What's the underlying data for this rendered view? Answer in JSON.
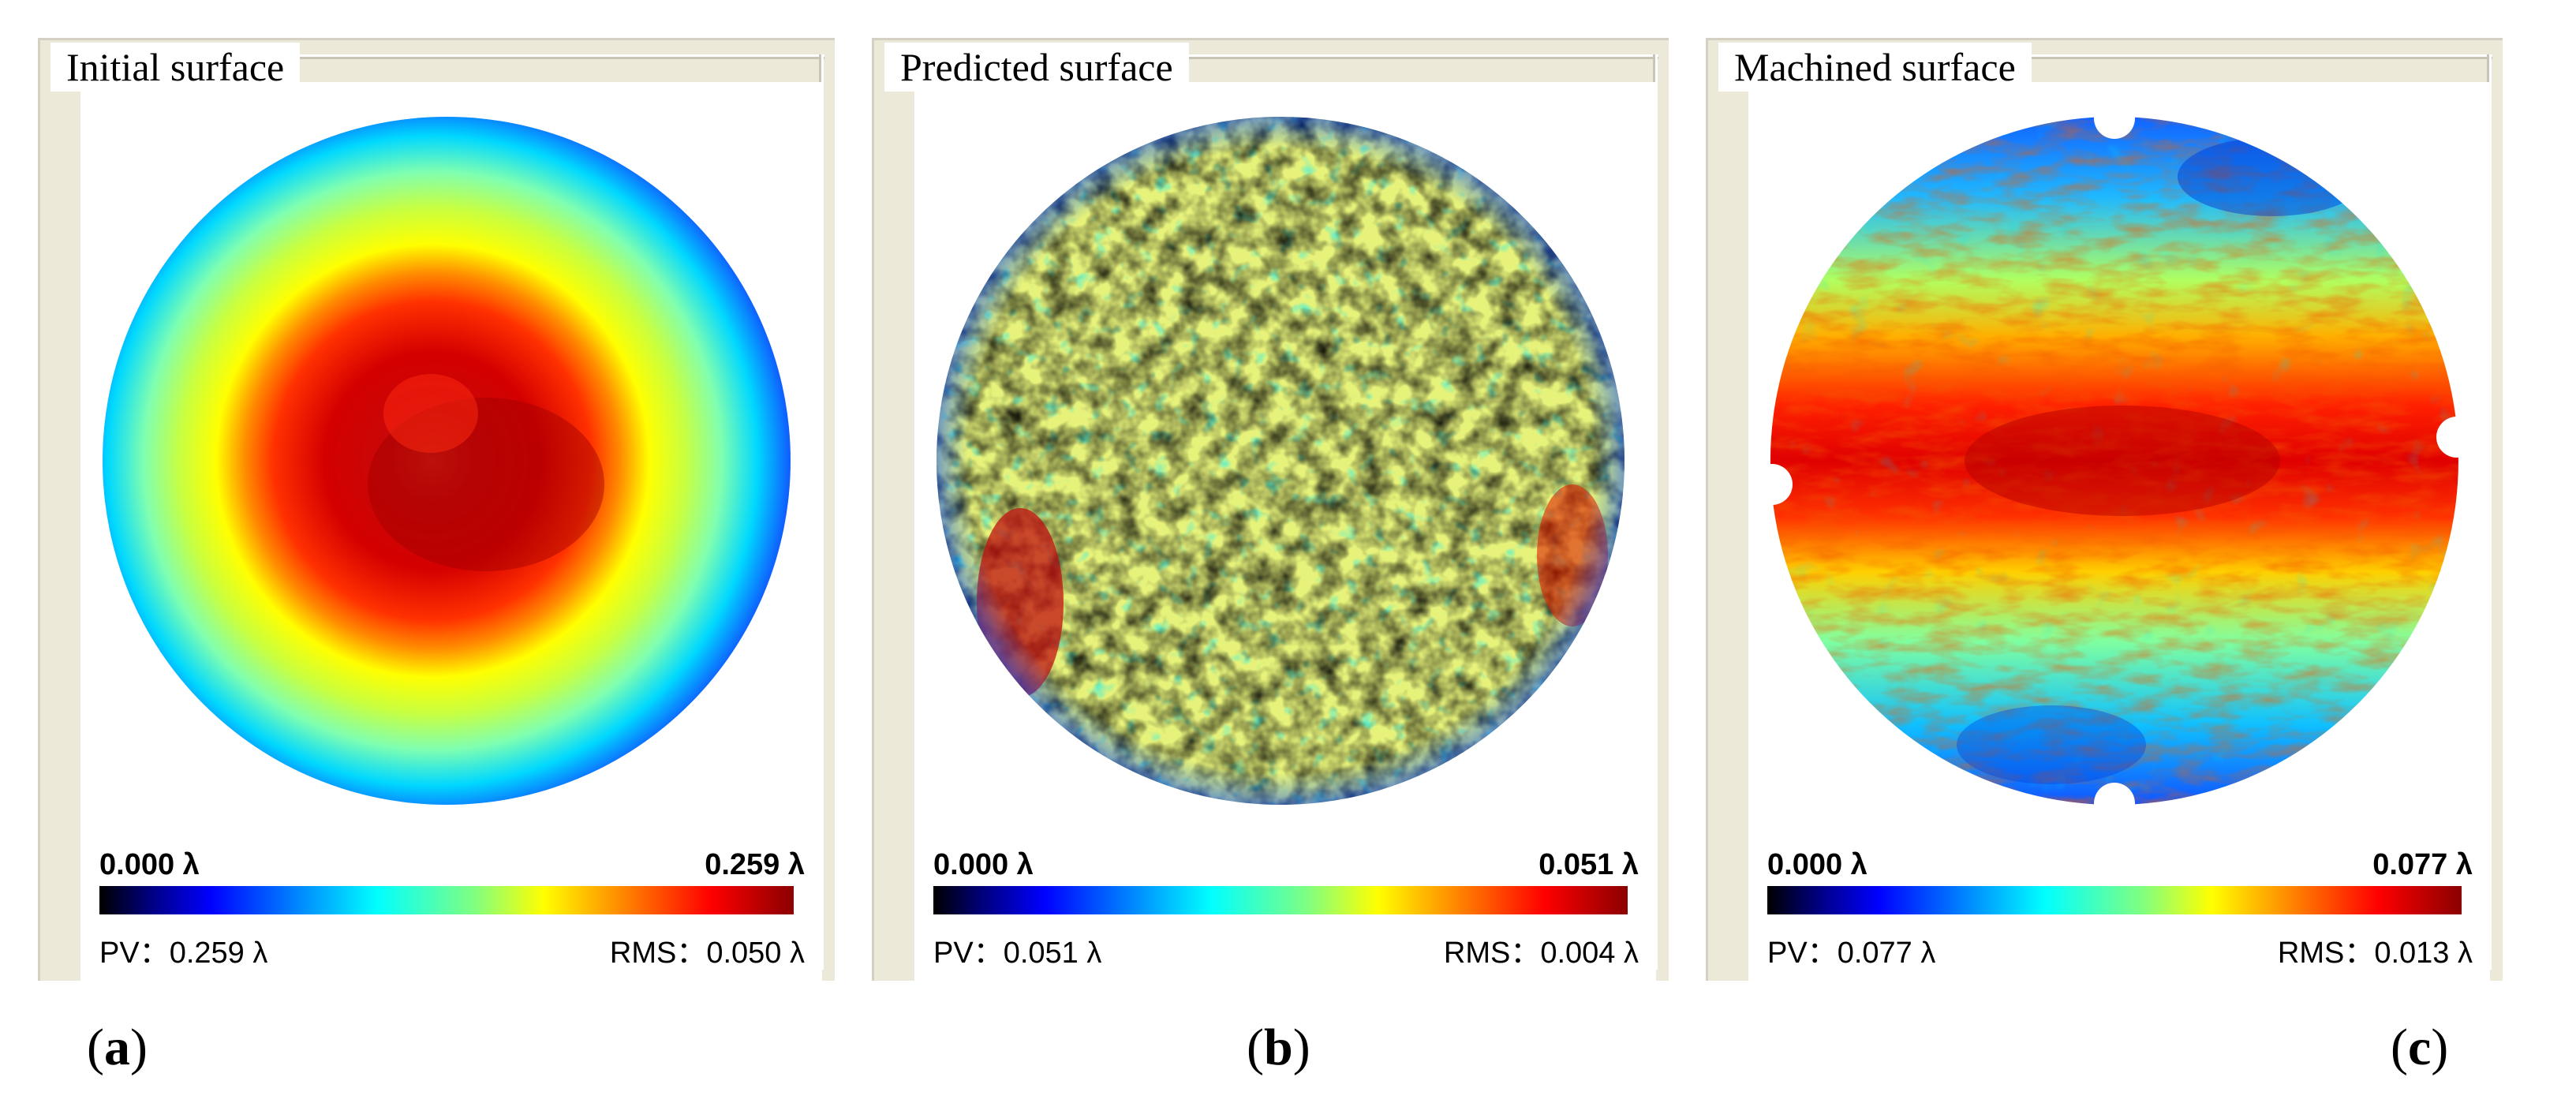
{
  "panels": [
    {
      "id": "a",
      "title": "Initial surface",
      "scale_min": "0.000 λ",
      "scale_max": "0.259 λ",
      "pv_label": "PV：",
      "pv_value": "0.259 λ",
      "rms_label": "RMS：",
      "rms_value": "0.050 λ",
      "sub_label": "a"
    },
    {
      "id": "b",
      "title": "Predicted surface",
      "scale_min": "0.000 λ",
      "scale_max": "0.051 λ",
      "pv_label": "PV：",
      "pv_value": "0.051 λ",
      "rms_label": "RMS：",
      "rms_value": "0.004 λ",
      "sub_label": "b"
    },
    {
      "id": "c",
      "title": "Machined surface",
      "scale_min": "0.000 λ",
      "scale_max": "0.077 λ",
      "pv_label": "PV：",
      "pv_value": "0.077 λ",
      "rms_label": "RMS：",
      "rms_value": "0.013 λ",
      "sub_label": "c"
    }
  ],
  "colormap": [
    "#000000",
    "#00008b",
    "#0000ff",
    "#0080ff",
    "#00ffff",
    "#80ff80",
    "#ffff00",
    "#ff8000",
    "#ff0000",
    "#8b0000"
  ]
}
